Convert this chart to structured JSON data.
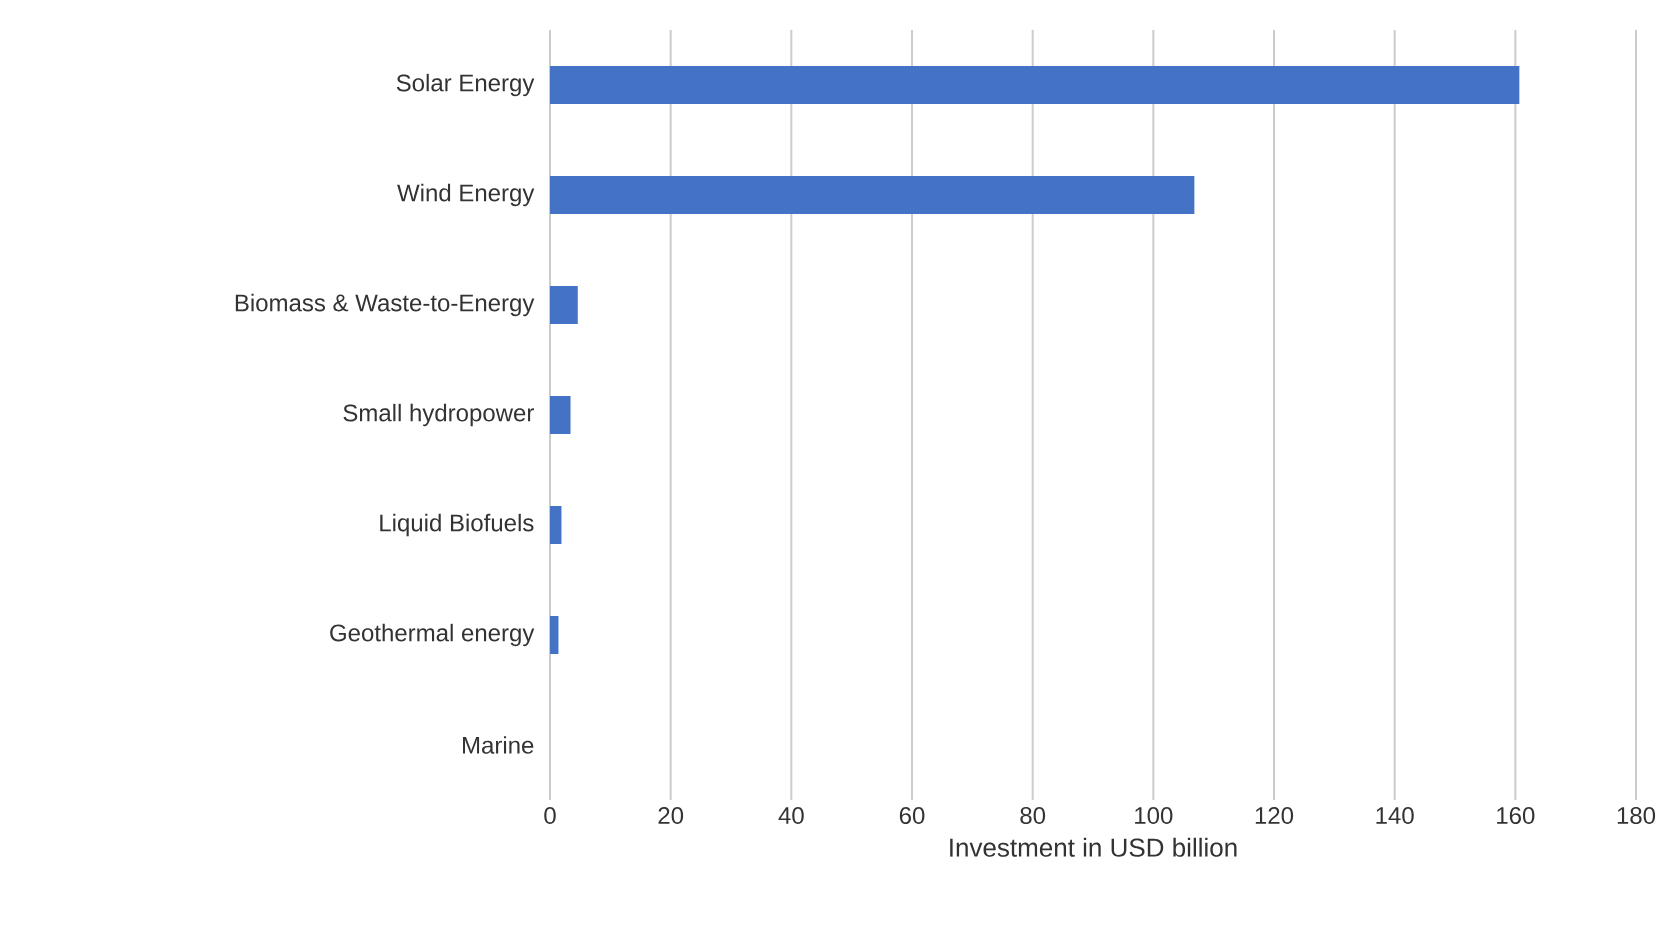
{
  "chart_data": {
    "type": "bar",
    "orientation": "horizontal",
    "xlabel": "Investment in USD billion",
    "categories": [
      "Solar Energy",
      "Wind Energy",
      "Biomass & Waste-to-Energy",
      "Small hydropower",
      "Liquid Biofuels",
      "Geothermal energy",
      "Marine"
    ],
    "values": [
      160.7,
      106.8,
      4.6,
      3.4,
      1.9,
      1.4,
      0
    ],
    "color": "#4472c4",
    "xlim": [
      0,
      180
    ],
    "xticks": [
      0,
      20,
      40,
      60,
      80,
      100,
      120,
      140,
      160,
      180
    ],
    "grid": "x"
  }
}
